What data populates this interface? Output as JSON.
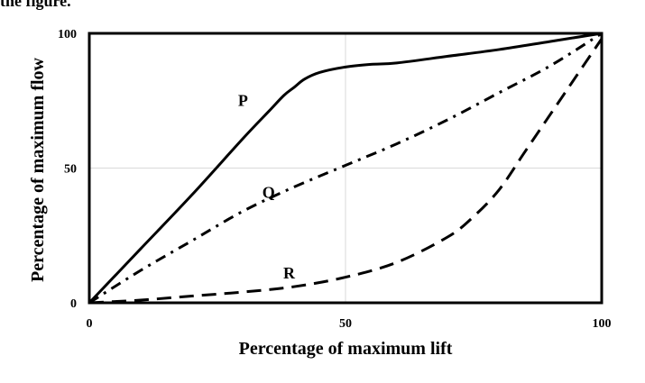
{
  "page": {
    "top_text": "the figure."
  },
  "chart_data": {
    "type": "line",
    "xlabel": "Percentage of maximum  lift",
    "ylabel": "Percentage of maximum  flow",
    "xlim": [
      0,
      100
    ],
    "ylim": [
      0,
      100
    ],
    "xticks": [
      0,
      50,
      100
    ],
    "yticks": [
      0,
      50,
      100
    ],
    "grid": true,
    "series": [
      {
        "name": "P",
        "line_style": "solid",
        "label_at": [
          30,
          73
        ],
        "x": [
          0,
          10,
          20,
          30,
          35,
          38,
          40,
          42,
          45,
          50,
          55,
          60,
          70,
          80,
          90,
          100
        ],
        "y": [
          0,
          20,
          40,
          61,
          71,
          77,
          80,
          83,
          85.5,
          87.5,
          88.5,
          89,
          91.5,
          94,
          97,
          100
        ]
      },
      {
        "name": "Q",
        "line_style": "dashdot",
        "label_at": [
          35,
          39
        ],
        "x": [
          0,
          10,
          20,
          30,
          40,
          50,
          60,
          70,
          80,
          90,
          100
        ],
        "y": [
          0,
          12,
          23,
          34,
          43,
          51,
          59,
          68,
          78,
          88,
          100
        ]
      },
      {
        "name": "R",
        "line_style": "dashed",
        "label_at": [
          39,
          9
        ],
        "x": [
          0,
          10,
          20,
          30,
          40,
          50,
          60,
          70,
          75,
          80,
          85,
          90,
          95,
          100
        ],
        "y": [
          0,
          1,
          2.5,
          4,
          6,
          9.5,
          15,
          24.5,
          32,
          42,
          56,
          70,
          84,
          98
        ]
      }
    ]
  }
}
